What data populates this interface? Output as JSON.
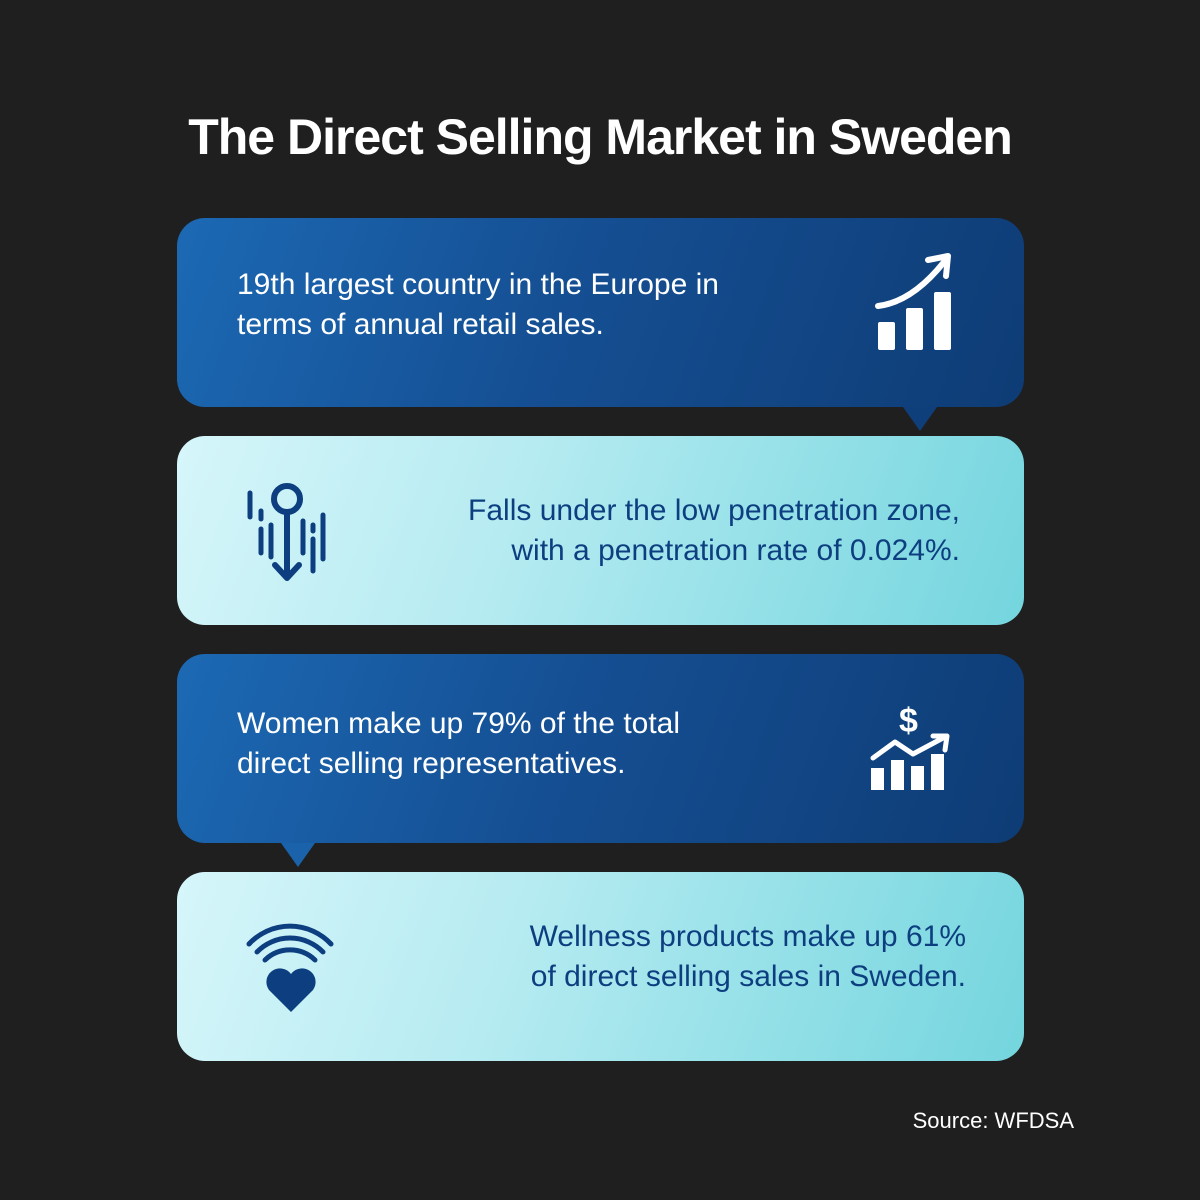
{
  "title": "The Direct Selling Market in Sweden",
  "cards": [
    {
      "text_line1": "19th largest country in the Europe in",
      "text_line2": "terms of annual retail sales.",
      "icon": "growth-chart-icon"
    },
    {
      "text_line1": "Falls under the low penetration zone,",
      "text_line2": "with a penetration rate of 0.024%.",
      "icon": "penetration-down-icon"
    },
    {
      "text_line1": "Women make up 79% of the total",
      "text_line2": "direct selling representatives.",
      "icon": "dollar-growth-chart-icon"
    },
    {
      "text_line1": "Wellness products make up 61%",
      "text_line2": "of direct selling sales in Sweden.",
      "icon": "wellness-heart-icon"
    }
  ],
  "source": "Source: WFDSA",
  "colors": {
    "background": "#1f1f1f",
    "dark_card": "#154f93",
    "light_card": "#b5ebf1",
    "light_text": "#0d3f80"
  }
}
